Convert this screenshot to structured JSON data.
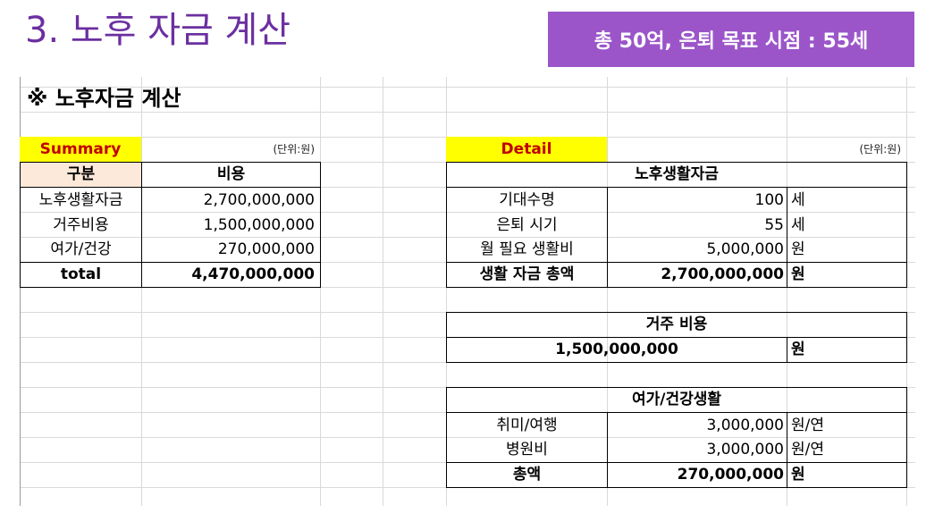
{
  "slide": {
    "title": "3. 노후 자금 계산",
    "badge": "총 50억, 은퇴 목표 시점  : 55세"
  },
  "sheet": {
    "title": "※ 노후자금 계산",
    "summary": {
      "label": "Summary",
      "unit": "(단위:원)",
      "headers": [
        "구분",
        "비용"
      ],
      "rows": [
        {
          "item": "노후생활자금",
          "cost": "2,700,000,000"
        },
        {
          "item": "거주비용",
          "cost": "1,500,000,000"
        },
        {
          "item": "여가/건강",
          "cost": "270,000,000"
        }
      ],
      "total": {
        "item": "total",
        "cost": "4,470,000,000"
      }
    },
    "detail": {
      "label": "Detail",
      "unit": "(단위:원)",
      "living": {
        "title": "노후생활자금",
        "rows": [
          {
            "item": "기대수명",
            "value": "100",
            "unit": "세"
          },
          {
            "item": "은퇴 시기",
            "value": "55",
            "unit": "세"
          },
          {
            "item": "월 필요 생활비",
            "value": "5,000,000",
            "unit": "원"
          }
        ],
        "total": {
          "item": "생활 자금 총액",
          "value": "2,700,000,000",
          "unit": "원"
        }
      },
      "housing": {
        "title": "거주 비용",
        "value": "1,500,000,000",
        "unit": "원"
      },
      "leisure": {
        "title": "여가/건강생활",
        "rows": [
          {
            "item": "취미/여행",
            "value": "3,000,000",
            "unit": "원/연"
          },
          {
            "item": "병원비",
            "value": "3,000,000",
            "unit": "원/연"
          }
        ],
        "total": {
          "item": "총액",
          "value": "270,000,000",
          "unit": "원"
        }
      }
    }
  }
}
